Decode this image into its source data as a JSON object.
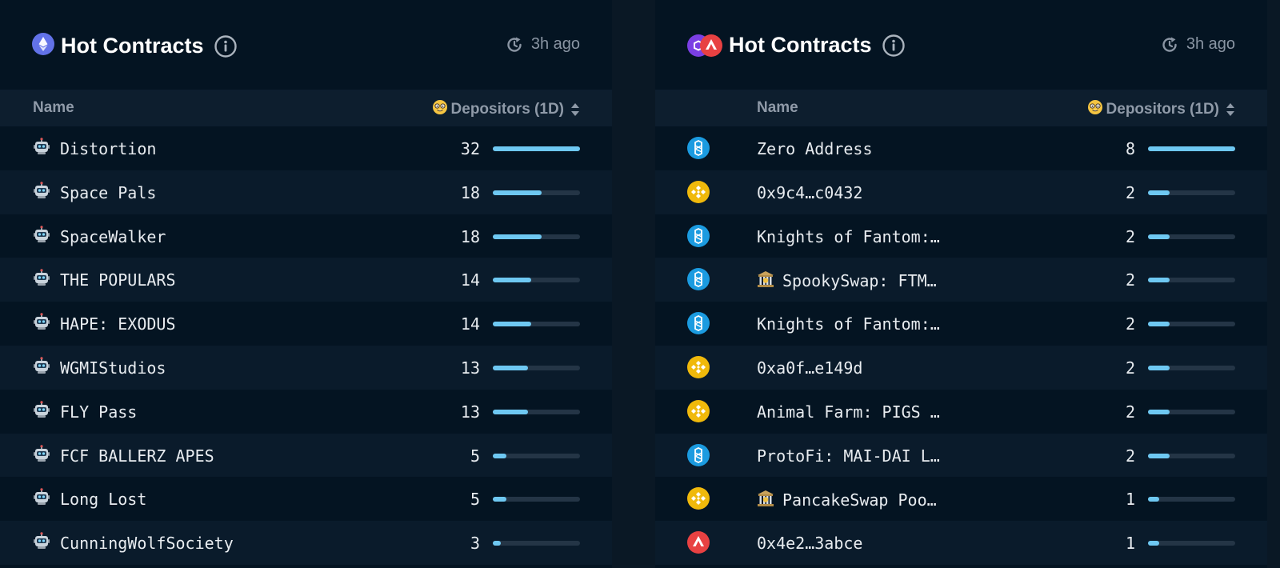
{
  "left_panel": {
    "title": "Hot Contracts",
    "updated": "3h ago",
    "col_name": "Name",
    "col_depositors": "Depositors (1D)",
    "chain_icon": "ethereum-icon",
    "row_icon": "robot-icon",
    "rows": [
      {
        "name": "Distortion",
        "count": "32",
        "fraction": 1.0
      },
      {
        "name": "Space Pals",
        "count": "18",
        "fraction": 0.5625
      },
      {
        "name": "SpaceWalker",
        "count": "18",
        "fraction": 0.5625
      },
      {
        "name": "THE POPULARS",
        "count": "14",
        "fraction": 0.4375
      },
      {
        "name": "HAPE: EXODUS",
        "count": "14",
        "fraction": 0.4375
      },
      {
        "name": "WGMIStudios",
        "count": "13",
        "fraction": 0.40625
      },
      {
        "name": "FLY Pass",
        "count": "13",
        "fraction": 0.40625
      },
      {
        "name": "FCF BALLERZ APES",
        "count": "5",
        "fraction": 0.15625
      },
      {
        "name": "Long Lost",
        "count": "5",
        "fraction": 0.15625
      },
      {
        "name": "CunningWolfSociety",
        "count": "3",
        "fraction": 0.09375
      }
    ]
  },
  "right_panel": {
    "title": "Hot Contracts",
    "updated": "3h ago",
    "col_name": "Name",
    "col_depositors": "Depositors (1D)",
    "chain_icons": [
      "polygon-icon",
      "avalanche-icon"
    ],
    "rows": [
      {
        "name": "Zero Address",
        "count": "8",
        "fraction": 1.0,
        "chain": "fantom",
        "building": false
      },
      {
        "name": "0x9c4…c0432",
        "count": "2",
        "fraction": 0.25,
        "chain": "bnb",
        "building": false
      },
      {
        "name": "Knights of Fantom:…",
        "count": "2",
        "fraction": 0.25,
        "chain": "fantom",
        "building": false
      },
      {
        "name": "SpookySwap: FTM…",
        "count": "2",
        "fraction": 0.25,
        "chain": "fantom",
        "building": true
      },
      {
        "name": "Knights of Fantom:…",
        "count": "2",
        "fraction": 0.25,
        "chain": "fantom",
        "building": false
      },
      {
        "name": "0xa0f…e149d",
        "count": "2",
        "fraction": 0.25,
        "chain": "bnb",
        "building": false
      },
      {
        "name": "Animal Farm: PIGS …",
        "count": "2",
        "fraction": 0.25,
        "chain": "bnb",
        "building": false
      },
      {
        "name": "ProtoFi: MAI-DAI L…",
        "count": "2",
        "fraction": 0.25,
        "chain": "fantom",
        "building": false
      },
      {
        "name": "PancakeSwap Poo…",
        "count": "1",
        "fraction": 0.125,
        "chain": "bnb",
        "building": true
      },
      {
        "name": "0x4e2…3abce",
        "count": "1",
        "fraction": 0.125,
        "chain": "avalanche",
        "building": false
      }
    ]
  },
  "colors": {
    "panel_bg": "#041422",
    "row_alt_bg": "#0a1b2b",
    "header_bg": "#0d1e2e",
    "bar_fill": "#6ec8f2",
    "bar_track": "#243546",
    "fantom": "#1b9be0",
    "bnb": "#f0b90b",
    "avalanche": "#e84142"
  }
}
